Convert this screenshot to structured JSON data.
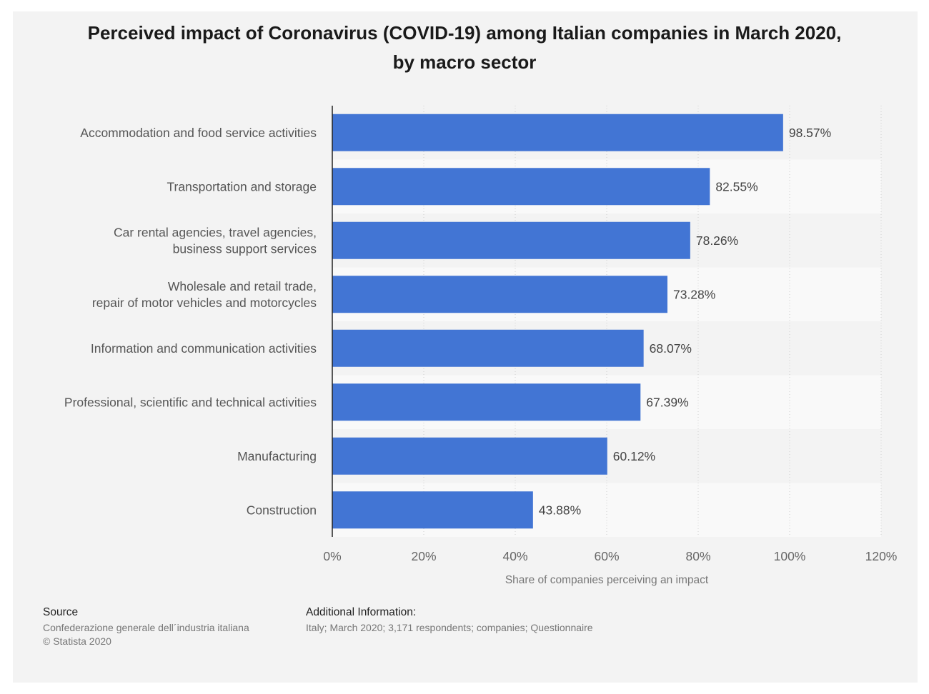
{
  "title_line1": "Perceived impact of Coronavirus (COVID-19) among Italian companies in March 2020,",
  "title_line2": "by macro sector",
  "source": {
    "heading": "Source",
    "line1": "Confederazione generale dell´industria italiana",
    "line2": "© Statista 2020"
  },
  "additional": {
    "heading": "Additional Information:",
    "text": "Italy; March 2020; 3,171 respondents; companies; Questionnaire"
  },
  "colors": {
    "bar": "#4275d4",
    "panel": "#f3f3f3",
    "band": "#f9f9f9"
  },
  "chart_data": {
    "type": "bar",
    "orientation": "horizontal",
    "categories": [
      [
        "Accommodation and food service activities"
      ],
      [
        "Transportation and storage"
      ],
      [
        "Car rental agencies, travel agencies,",
        "business support services"
      ],
      [
        "Wholesale and retail trade,",
        "repair of motor vehicles and motorcycles"
      ],
      [
        "Information and communication activities"
      ],
      [
        "Professional, scientific and technical activities"
      ],
      [
        "Manufacturing"
      ],
      [
        "Construction"
      ]
    ],
    "values": [
      98.57,
      82.55,
      78.26,
      73.28,
      68.07,
      67.39,
      60.12,
      43.88
    ],
    "value_labels": [
      "98.57%",
      "82.55%",
      "78.26%",
      "73.28%",
      "68.07%",
      "67.39%",
      "60.12%",
      "43.88%"
    ],
    "xlim": [
      0,
      120
    ],
    "xticks": [
      0,
      20,
      40,
      60,
      80,
      100,
      120
    ],
    "xtick_labels": [
      "0%",
      "20%",
      "40%",
      "60%",
      "80%",
      "100%",
      "120%"
    ],
    "xlabel": "Share of companies perceiving an impact",
    "ylabel": "",
    "grid": "vertical dotted"
  }
}
